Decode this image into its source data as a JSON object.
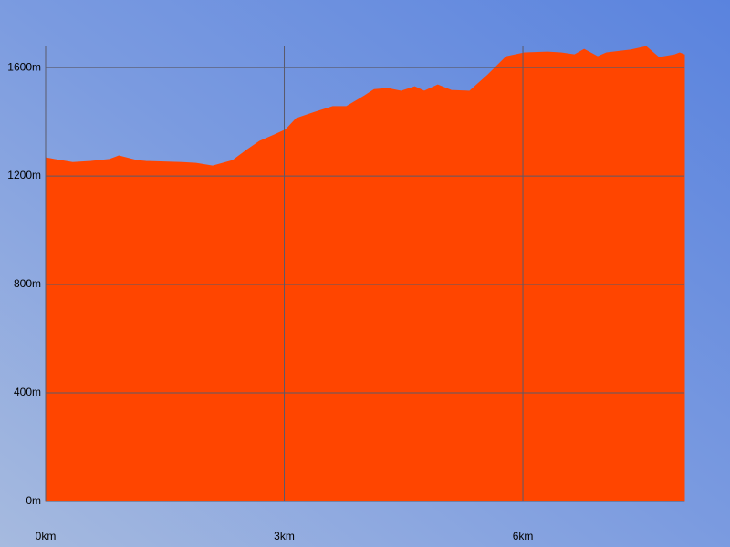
{
  "chart_data": {
    "type": "area",
    "x": [
      0,
      0.11,
      0.34,
      0.57,
      0.8,
      0.92,
      1.15,
      1.26,
      1.72,
      1.89,
      2.1,
      2.35,
      2.52,
      2.69,
      2.87,
      3.02,
      3.15,
      3.38,
      3.61,
      3.78,
      4.01,
      4.13,
      4.3,
      4.47,
      4.64,
      4.76,
      4.93,
      5.1,
      5.33,
      5.56,
      5.79,
      6.02,
      6.31,
      6.48,
      6.65,
      6.77,
      6.94,
      7.05,
      7.34,
      7.55,
      7.71,
      7.91,
      7.97,
      8.03
    ],
    "values": [
      1267,
      1261,
      1250,
      1254,
      1261,
      1274,
      1257,
      1254,
      1250,
      1247,
      1237,
      1257,
      1294,
      1328,
      1351,
      1371,
      1412,
      1435,
      1456,
      1456,
      1496,
      1519,
      1523,
      1513,
      1529,
      1513,
      1536,
      1516,
      1513,
      1573,
      1640,
      1654,
      1657,
      1654,
      1647,
      1667,
      1640,
      1654,
      1664,
      1677,
      1637,
      1647,
      1654,
      1647
    ],
    "color": "#ff4500",
    "xlim": [
      0,
      8.03
    ],
    "ylim": [
      0,
      1681
    ],
    "xticks": [
      {
        "value": 0,
        "label": "0km"
      },
      {
        "value": 3,
        "label": "3km"
      },
      {
        "value": 6,
        "label": "6km"
      }
    ],
    "yticks": [
      {
        "value": 0,
        "label": "0m"
      },
      {
        "value": 400,
        "label": "400m"
      },
      {
        "value": 800,
        "label": "800m"
      },
      {
        "value": 1200,
        "label": "1200m"
      },
      {
        "value": 1600,
        "label": "1600m"
      }
    ],
    "grid": true
  }
}
